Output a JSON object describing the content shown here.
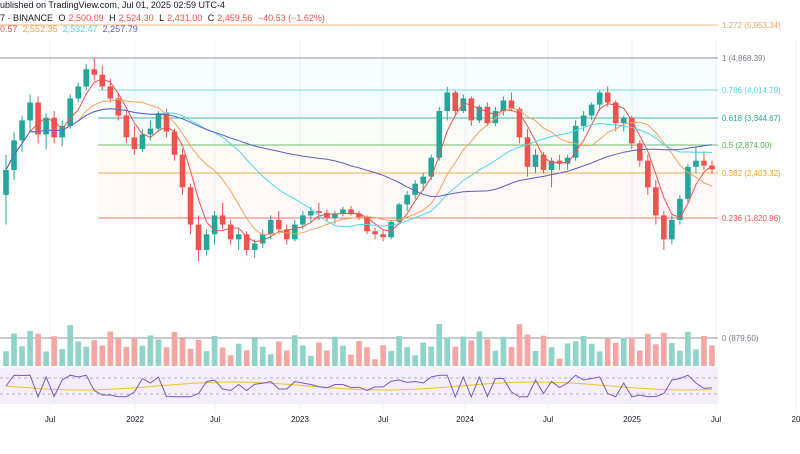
{
  "header": {
    "published": "ublished on TradingView.com, Jul 01, 2025 02:59 UTC-4",
    "exchange_prefix": "7 · BINANCE",
    "ohlc": {
      "o_label": "O",
      "o_value": "2,500.09",
      "h_label": "H",
      "h_value": "2,524.30",
      "l_label": "L",
      "l_value": "2,431.00",
      "c_label": "C",
      "c_value": "2,459.56",
      "change": "−40.53 (−1.62%)"
    },
    "moving_averages": [
      "0.57",
      "2,552.35",
      "2,532.47",
      "2,257.79"
    ]
  },
  "colors": {
    "up": "#26a69a",
    "down": "#ef5350",
    "ma_fast": "#ef5350",
    "ma_mid": "#f7a35c",
    "ma_slow": "#4dd8e6",
    "ma_long": "#5b5fc7",
    "rsi": "#7e57c2",
    "rsi_ma": "#f0c419"
  },
  "chart_data": {
    "type": "candlestick",
    "x_ticks": [
      "Jul",
      "2022",
      "Jul",
      "2023",
      "Jul",
      "2024",
      "Jul",
      "2025",
      "Jul",
      "20"
    ],
    "y_scale": "log",
    "ylim": [
      1400,
      5200
    ],
    "fib_levels": [
      {
        "label": "1.272 (5,953.34)",
        "ratio": 1.272,
        "price": 5953.34,
        "color": "#f7a35c"
      },
      {
        "label": "1 (4,868.39)",
        "ratio": 1,
        "price": 4868.39,
        "color": "#787b86"
      },
      {
        "label": "0.786 (4,014.79)",
        "ratio": 0.786,
        "price": 4014.79,
        "color": "#4dd8e6"
      },
      {
        "label": "0.618 (3,344.67)",
        "ratio": 0.618,
        "price": 3344.67,
        "color": "#26a69a"
      },
      {
        "label": "0.5 (2,874.00)",
        "ratio": 0.5,
        "price": 2874.0,
        "color": "#4caf50"
      },
      {
        "label": "0.382 (2,403.32)",
        "ratio": 0.382,
        "price": 2403.32,
        "color": "#f0a020"
      },
      {
        "label": "0.236 (1,820.96)",
        "ratio": 0.236,
        "price": 1820.96,
        "color": "#ef5350"
      },
      {
        "label": "0 (879.60)",
        "ratio": 0,
        "price": 879.6,
        "color": "#787b86"
      }
    ],
    "candles": [
      {
        "o": 2100,
        "h": 2700,
        "l": 1750,
        "c": 2450
      },
      {
        "o": 2450,
        "h": 3100,
        "l": 2300,
        "c": 2950
      },
      {
        "o": 2950,
        "h": 3400,
        "l": 2750,
        "c": 3300
      },
      {
        "o": 3300,
        "h": 3900,
        "l": 3100,
        "c": 3700
      },
      {
        "o": 3700,
        "h": 3850,
        "l": 2900,
        "c": 3050
      },
      {
        "o": 3050,
        "h": 3450,
        "l": 2800,
        "c": 3350
      },
      {
        "o": 3350,
        "h": 3500,
        "l": 2900,
        "c": 3000
      },
      {
        "o": 3000,
        "h": 3300,
        "l": 2850,
        "c": 3200
      },
      {
        "o": 3200,
        "h": 3900,
        "l": 3150,
        "c": 3800
      },
      {
        "o": 3800,
        "h": 4200,
        "l": 3700,
        "c": 4100
      },
      {
        "o": 4100,
        "h": 4700,
        "l": 4000,
        "c": 4550
      },
      {
        "o": 4550,
        "h": 4870,
        "l": 4250,
        "c": 4400
      },
      {
        "o": 4400,
        "h": 4650,
        "l": 4000,
        "c": 4100
      },
      {
        "o": 4100,
        "h": 4300,
        "l": 3700,
        "c": 3800
      },
      {
        "o": 3800,
        "h": 3950,
        "l": 3300,
        "c": 3400
      },
      {
        "o": 3400,
        "h": 3500,
        "l": 2900,
        "c": 3000
      },
      {
        "o": 3000,
        "h": 3200,
        "l": 2700,
        "c": 2800
      },
      {
        "o": 2800,
        "h": 3150,
        "l": 2750,
        "c": 3050
      },
      {
        "o": 3050,
        "h": 3300,
        "l": 2950,
        "c": 3150
      },
      {
        "o": 3150,
        "h": 3500,
        "l": 3100,
        "c": 3450
      },
      {
        "o": 3450,
        "h": 3550,
        "l": 3000,
        "c": 3100
      },
      {
        "o": 3100,
        "h": 3150,
        "l": 2600,
        "c": 2700
      },
      {
        "o": 2700,
        "h": 2800,
        "l": 2100,
        "c": 2200
      },
      {
        "o": 2200,
        "h": 2250,
        "l": 1650,
        "c": 1750
      },
      {
        "o": 1750,
        "h": 1850,
        "l": 1400,
        "c": 1500
      },
      {
        "o": 1500,
        "h": 1700,
        "l": 1450,
        "c": 1650
      },
      {
        "o": 1650,
        "h": 1900,
        "l": 1550,
        "c": 1850
      },
      {
        "o": 1850,
        "h": 2000,
        "l": 1700,
        "c": 1750
      },
      {
        "o": 1750,
        "h": 1800,
        "l": 1550,
        "c": 1600
      },
      {
        "o": 1600,
        "h": 1700,
        "l": 1500,
        "c": 1650
      },
      {
        "o": 1650,
        "h": 1680,
        "l": 1450,
        "c": 1500
      },
      {
        "o": 1500,
        "h": 1600,
        "l": 1430,
        "c": 1560
      },
      {
        "o": 1560,
        "h": 1700,
        "l": 1520,
        "c": 1650
      },
      {
        "o": 1650,
        "h": 1850,
        "l": 1600,
        "c": 1800
      },
      {
        "o": 1800,
        "h": 1900,
        "l": 1650,
        "c": 1700
      },
      {
        "o": 1700,
        "h": 1750,
        "l": 1550,
        "c": 1600
      },
      {
        "o": 1600,
        "h": 1800,
        "l": 1580,
        "c": 1750
      },
      {
        "o": 1750,
        "h": 1900,
        "l": 1700,
        "c": 1850
      },
      {
        "o": 1850,
        "h": 1950,
        "l": 1780,
        "c": 1900
      },
      {
        "o": 1900,
        "h": 2000,
        "l": 1800,
        "c": 1880
      },
      {
        "o": 1880,
        "h": 1920,
        "l": 1780,
        "c": 1820
      },
      {
        "o": 1820,
        "h": 1900,
        "l": 1760,
        "c": 1870
      },
      {
        "o": 1870,
        "h": 1950,
        "l": 1840,
        "c": 1920
      },
      {
        "o": 1920,
        "h": 1960,
        "l": 1850,
        "c": 1870
      },
      {
        "o": 1870,
        "h": 1900,
        "l": 1800,
        "c": 1830
      },
      {
        "o": 1830,
        "h": 1850,
        "l": 1650,
        "c": 1680
      },
      {
        "o": 1680,
        "h": 1720,
        "l": 1600,
        "c": 1650
      },
      {
        "o": 1650,
        "h": 1700,
        "l": 1580,
        "c": 1620
      },
      {
        "o": 1620,
        "h": 1800,
        "l": 1600,
        "c": 1780
      },
      {
        "o": 1780,
        "h": 2000,
        "l": 1750,
        "c": 1980
      },
      {
        "o": 1980,
        "h": 2150,
        "l": 1900,
        "c": 2100
      },
      {
        "o": 2100,
        "h": 2300,
        "l": 2050,
        "c": 2250
      },
      {
        "o": 2250,
        "h": 2400,
        "l": 2150,
        "c": 2350
      },
      {
        "o": 2350,
        "h": 2700,
        "l": 2300,
        "c": 2650
      },
      {
        "o": 2650,
        "h": 3600,
        "l": 2600,
        "c": 3500
      },
      {
        "o": 3500,
        "h": 4090,
        "l": 3300,
        "c": 3950
      },
      {
        "o": 3950,
        "h": 4000,
        "l": 3400,
        "c": 3500
      },
      {
        "o": 3500,
        "h": 3900,
        "l": 3450,
        "c": 3800
      },
      {
        "o": 3800,
        "h": 3850,
        "l": 3200,
        "c": 3300
      },
      {
        "o": 3300,
        "h": 3650,
        "l": 3250,
        "c": 3600
      },
      {
        "o": 3600,
        "h": 3700,
        "l": 3200,
        "c": 3250
      },
      {
        "o": 3250,
        "h": 3600,
        "l": 3200,
        "c": 3500
      },
      {
        "o": 3500,
        "h": 3850,
        "l": 3400,
        "c": 3750
      },
      {
        "o": 3750,
        "h": 3950,
        "l": 3500,
        "c": 3550
      },
      {
        "o": 3550,
        "h": 3600,
        "l": 2900,
        "c": 3000
      },
      {
        "o": 3000,
        "h": 3150,
        "l": 2350,
        "c": 2500
      },
      {
        "o": 2500,
        "h": 2800,
        "l": 2400,
        "c": 2700
      },
      {
        "o": 2700,
        "h": 2750,
        "l": 2400,
        "c": 2450
      },
      {
        "o": 2450,
        "h": 2650,
        "l": 2200,
        "c": 2600
      },
      {
        "o": 2600,
        "h": 2700,
        "l": 2450,
        "c": 2550
      },
      {
        "o": 2550,
        "h": 2700,
        "l": 2450,
        "c": 2650
      },
      {
        "o": 2650,
        "h": 3300,
        "l": 2600,
        "c": 3200
      },
      {
        "o": 3200,
        "h": 3500,
        "l": 3100,
        "c": 3400
      },
      {
        "o": 3400,
        "h": 3700,
        "l": 3300,
        "c": 3650
      },
      {
        "o": 3650,
        "h": 4000,
        "l": 3500,
        "c": 3950
      },
      {
        "o": 3950,
        "h": 4100,
        "l": 3600,
        "c": 3700
      },
      {
        "o": 3700,
        "h": 3750,
        "l": 3100,
        "c": 3250
      },
      {
        "o": 3250,
        "h": 3400,
        "l": 3100,
        "c": 3350
      },
      {
        "o": 3350,
        "h": 3400,
        "l": 2800,
        "c": 2900
      },
      {
        "o": 2900,
        "h": 2950,
        "l": 2500,
        "c": 2600
      },
      {
        "o": 2600,
        "h": 2700,
        "l": 2100,
        "c": 2200
      },
      {
        "o": 2200,
        "h": 2300,
        "l": 1750,
        "c": 1850
      },
      {
        "o": 1850,
        "h": 1900,
        "l": 1500,
        "c": 1600
      },
      {
        "o": 1600,
        "h": 1850,
        "l": 1550,
        "c": 1800
      },
      {
        "o": 1800,
        "h": 2100,
        "l": 1750,
        "c": 2050
      },
      {
        "o": 2050,
        "h": 2550,
        "l": 2000,
        "c": 2500
      },
      {
        "o": 2500,
        "h": 2850,
        "l": 2400,
        "c": 2600
      },
      {
        "o": 2600,
        "h": 2750,
        "l": 2450,
        "c": 2520
      },
      {
        "o": 2520,
        "h": 2600,
        "l": 2400,
        "c": 2460
      }
    ],
    "volume_hint": "volume bars at bottom in muted up/down colors",
    "rsi_panel": true
  }
}
